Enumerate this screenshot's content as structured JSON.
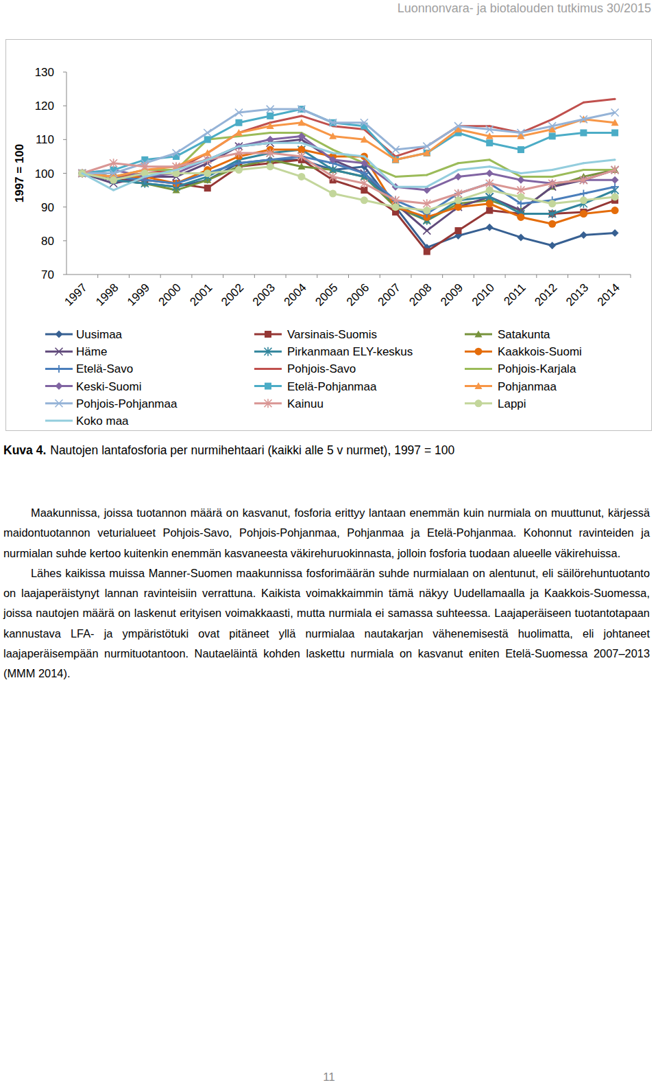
{
  "header": {
    "text": "Luonnonvara- ja biotalouden tutkimus 30/2015"
  },
  "chart_data": {
    "type": "line",
    "y_label": "1997 = 100",
    "categories": [
      "1997",
      "1998",
      "1999",
      "2000",
      "2001",
      "2002",
      "2003",
      "2004",
      "2005",
      "2006",
      "2007",
      "2008",
      "2009",
      "2010",
      "2011",
      "2012",
      "2013",
      "2014"
    ],
    "ylim": [
      70,
      130
    ],
    "yticks": [
      70,
      80,
      90,
      100,
      110,
      120,
      130
    ],
    "grid": false,
    "legend": "bottom",
    "series": [
      {
        "name": "Uusimaa",
        "color": "#376092",
        "marker": "diamond",
        "values": [
          100,
          98,
          97,
          96,
          98,
          103,
          104,
          104,
          101,
          102,
          90,
          78,
          81.5,
          84,
          81,
          78.6,
          81.7,
          82.3
        ]
      },
      {
        "name": "Varsinais-Suomis",
        "color": "#953735",
        "marker": "square",
        "values": [
          100,
          98,
          98,
          97,
          95.6,
          102,
          103,
          104,
          98,
          95,
          88.5,
          76.8,
          83,
          89,
          88,
          88,
          88.5,
          92
        ]
      },
      {
        "name": "Satakunta",
        "color": "#77933c",
        "marker": "triangle",
        "values": [
          100,
          98,
          97,
          95,
          98,
          102,
          104,
          102,
          101,
          99,
          90,
          86,
          91,
          92,
          89,
          96,
          99,
          101
        ]
      },
      {
        "name": "Häme",
        "color": "#604a7b",
        "marker": "x",
        "values": [
          100,
          97,
          99,
          99,
          103,
          108,
          109,
          110,
          104,
          100,
          91,
          83,
          90,
          93,
          89,
          96,
          98,
          101
        ]
      },
      {
        "name": "Pirkanmaan ELY-keskus",
        "color": "#31859c",
        "marker": "star",
        "values": [
          100,
          98,
          97,
          96,
          99,
          104,
          106,
          107,
          101,
          99,
          91,
          86,
          92,
          93,
          88,
          88,
          91,
          95
        ]
      },
      {
        "name": "Kaakkois-Suomi",
        "color": "#e46c0a",
        "marker": "circle",
        "values": [
          100,
          99,
          99,
          97,
          101,
          105,
          107,
          107,
          105,
          105,
          90,
          87,
          90,
          91,
          87,
          85,
          88,
          89
        ]
      },
      {
        "name": "Etelä-Savo",
        "color": "#4a7ebb",
        "marker": "plus",
        "values": [
          100,
          99,
          98,
          97,
          100,
          103,
          104,
          105,
          103,
          100,
          92,
          88,
          94,
          97,
          91,
          92,
          94,
          96
        ]
      },
      {
        "name": "Pohjois-Savo",
        "color": "#c0504d",
        "marker": "none",
        "values": [
          100,
          99,
          100,
          101,
          106,
          112,
          115,
          117,
          114,
          113,
          105,
          108,
          114,
          114,
          112,
          116,
          121,
          122
        ]
      },
      {
        "name": "Pohjois-Karjala",
        "color": "#9bbb59",
        "marker": "none",
        "values": [
          100,
          99,
          101,
          101,
          110,
          111,
          112,
          112,
          107,
          103,
          99,
          99.5,
          103,
          104,
          99,
          99,
          101,
          101
        ]
      },
      {
        "name": "Keski-Suomi",
        "color": "#8064a2",
        "marker": "diamond",
        "values": [
          100,
          101,
          99,
          100,
          104,
          108,
          110,
          111,
          104,
          103,
          96,
          95,
          99,
          100,
          98,
          97,
          98,
          98
        ]
      },
      {
        "name": "Etelä-Pohjanmaa",
        "color": "#4bacc6",
        "marker": "square",
        "values": [
          100,
          101,
          104,
          105,
          110,
          115,
          117,
          119,
          115,
          114,
          104,
          106,
          112,
          109,
          107,
          111,
          112,
          112
        ]
      },
      {
        "name": "Pohjanmaa",
        "color": "#f79646",
        "marker": "triangle",
        "values": [
          100,
          99,
          101,
          102,
          106,
          112,
          114,
          115,
          111,
          110,
          104,
          106,
          113,
          111,
          111,
          113,
          116,
          115
        ]
      },
      {
        "name": "Pohjois-Pohjanmaa",
        "color": "#95b3d7",
        "marker": "x",
        "values": [
          100,
          100,
          103,
          106,
          112,
          118,
          119,
          119,
          115,
          115,
          107,
          108,
          114,
          113,
          112,
          114,
          116,
          118
        ]
      },
      {
        "name": "Kainuu",
        "color": "#d99694",
        "marker": "star",
        "values": [
          100,
          103,
          102,
          102,
          104,
          106,
          106,
          105,
          99,
          97,
          92,
          91,
          94,
          97,
          95,
          97,
          98,
          101
        ]
      },
      {
        "name": "Lappi",
        "color": "#c3d69b",
        "marker": "circle",
        "values": [
          100,
          98,
          100,
          100,
          100,
          101,
          102,
          99,
          94,
          92,
          90,
          89,
          92,
          95,
          93,
          91,
          92,
          93
        ]
      },
      {
        "name": "Koko maa",
        "color": "#93cddd",
        "marker": "none",
        "values": [
          100,
          95,
          99,
          101,
          104,
          108,
          109,
          109,
          106,
          105,
          96,
          96,
          101,
          102,
          100,
          101,
          103,
          104
        ]
      }
    ]
  },
  "caption": {
    "label": "Kuva 4.",
    "text": "Nautojen lantafosforia per nurmihehtaari (kaikki alle 5 v nurmet), 1997 = 100"
  },
  "paragraphs": [
    "Maakunnissa, joissa tuotannon määrä on kasvanut, fosforia erittyy lantaan enemmän kuin nurmiala on muuttunut, kärjessä maidontuotannon veturialueet Pohjois-Savo, Pohjois-Pohjanmaa, Pohjanmaa ja Etelä-Pohjanmaa. Kohonnut ravinteiden ja nurmialan suhde kertoo kuitenkin enemmän kasvaneesta väkirehuruokinnasta, jolloin fosforia tuodaan alueelle väkirehuissa.",
    "Lähes kaikissa muissa Manner-Suomen maakunnissa fosforimäärän suhde nurmialaan on alentunut, eli säilörehuntuotanto on laajaperäistynyt lannan ravinteisiin verrattuna. Kaikista voimakkaimmin tämä näkyy Uudellamaalla ja Kaakkois-Suomessa, joissa nautojen määrä on laskenut erityisen voimakkaasti, mutta nurmiala ei samassa suhteessa. Laajaperäiseen tuotantotapaan kannustava LFA- ja ympäristötuki ovat pitäneet yllä nurmialaa nautakarjan vähenemisestä huolimatta, eli johtaneet laajaperäisempään nurmituotantoon. Nautaeläintä kohden laskettu nurmiala on kasvanut eniten Etelä-Suomessa 2007–2013 (MMM 2014)."
  ],
  "page_number": {
    "text": "11"
  }
}
